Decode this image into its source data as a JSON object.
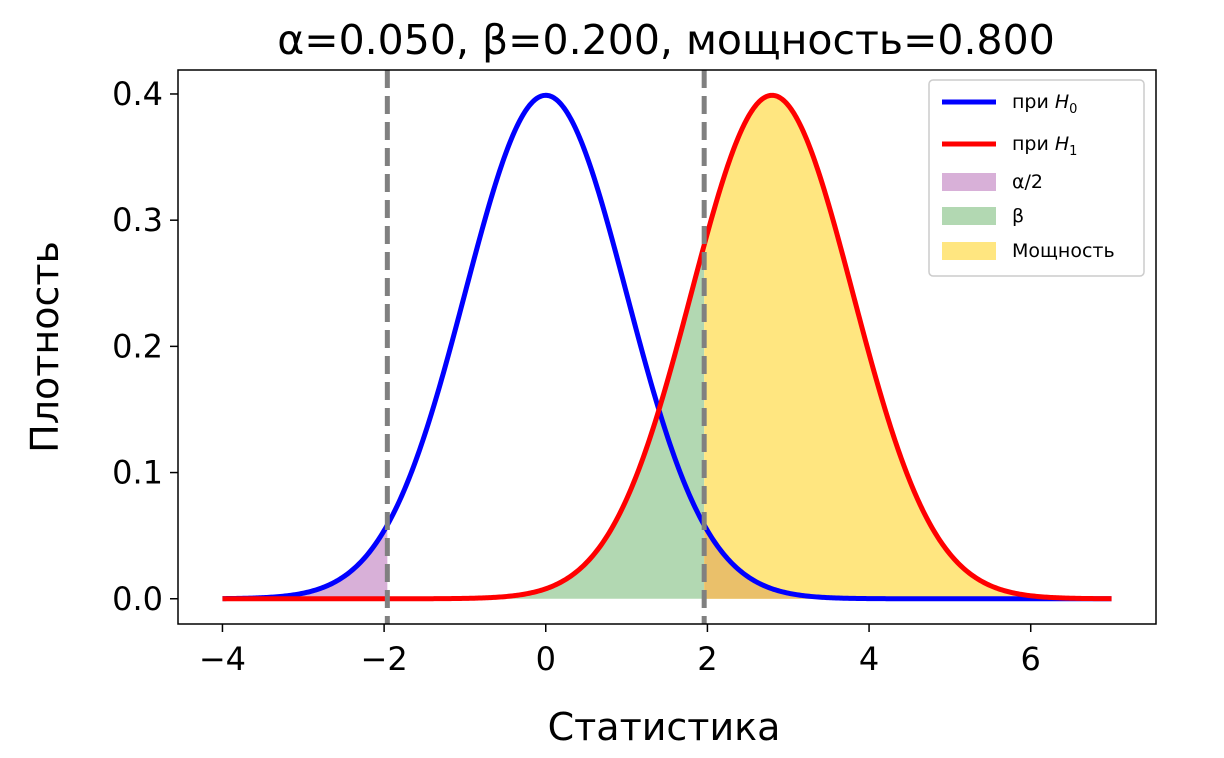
{
  "chart_data": {
    "type": "area",
    "title": "α=0.050,  β=0.200,  мощность=0.800",
    "xlabel": "Статистика",
    "ylabel": "Плотность",
    "xlim": [
      -4.55,
      7.55
    ],
    "ylim": [
      -0.02,
      0.419
    ],
    "xticks": [
      -4,
      -2,
      0,
      2,
      4,
      6
    ],
    "xtick_labels": [
      "−4",
      "−2",
      "0",
      "2",
      "4",
      "6"
    ],
    "yticks": [
      0.0,
      0.1,
      0.2,
      0.3,
      0.4
    ],
    "ytick_labels": [
      "0.0",
      "0.1",
      "0.2",
      "0.3",
      "0.4"
    ],
    "x_range": [
      -4,
      7
    ],
    "critical_values": [
      -1.96,
      1.96
    ],
    "series": [
      {
        "name": "при H0",
        "label_main": "при ",
        "label_sub": "0",
        "distribution": "normal",
        "mean": 0,
        "sd": 1,
        "color": "#0000ff"
      },
      {
        "name": "при H1",
        "label_main": "при ",
        "label_sub": "1",
        "distribution": "normal",
        "mean": 2.8,
        "sd": 1,
        "color": "#ff0000"
      }
    ],
    "areas": [
      {
        "name": "α/2",
        "color": "#d8b0d8",
        "under": "H0",
        "from": -4,
        "to": -1.96
      },
      {
        "name": "β",
        "color": "#b2d8b2",
        "under": "H1",
        "from": -4,
        "to": 1.96
      },
      {
        "name": "Мощность",
        "color": "#ffe680",
        "under": "H1",
        "from": 1.96,
        "to": 7
      },
      {
        "name": "α/2 (upper)",
        "color": "#eac06a",
        "under": "H0",
        "from": 1.96,
        "to": 7
      }
    ],
    "legend_position": "upper right",
    "grid": false
  }
}
